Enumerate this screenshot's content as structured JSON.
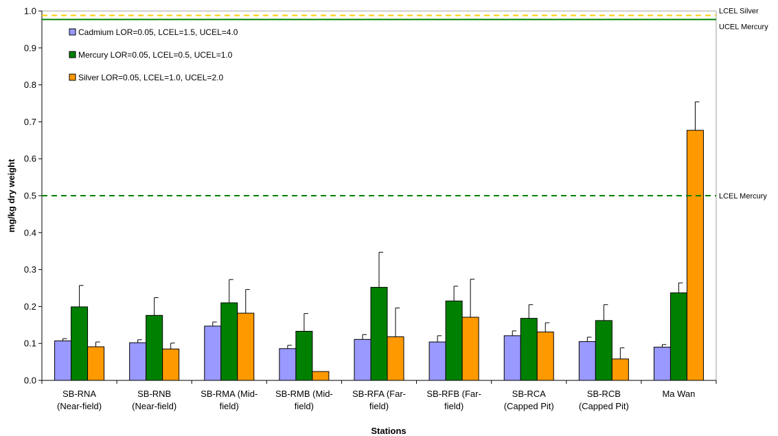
{
  "chart_data": {
    "type": "bar",
    "xlabel": "Stations",
    "ylabel": "mg/kg dry weight",
    "ylim": [
      0,
      1.0
    ],
    "ytick_labels": [
      "0.0",
      "0.1",
      "0.2",
      "0.3",
      "0.4",
      "0.5",
      "0.6",
      "0.7",
      "0.8",
      "0.9",
      "1.0"
    ],
    "grid": false,
    "legend_position": "top-left",
    "categories": [
      [
        "SB-RNA",
        "(Near-field)"
      ],
      [
        "SB-RNB",
        "(Near-field)"
      ],
      [
        "SB-RMA (Mid-",
        "field)"
      ],
      [
        "SB-RMB (Mid-",
        "field)"
      ],
      [
        "SB-RFA (Far-",
        "field)"
      ],
      [
        "SB-RFB (Far-",
        "field)"
      ],
      [
        "SB-RCA",
        "(Capped Pit)"
      ],
      [
        "SB-RCB",
        "(Capped Pit)"
      ],
      [
        "Ma Wan",
        ""
      ]
    ],
    "series": [
      {
        "name": "Cadmium LOR=0.05, LCEL=1.5, UCEL=4.0",
        "color": "#9999ff",
        "values": [
          0.107,
          0.102,
          0.147,
          0.086,
          0.111,
          0.104,
          0.121,
          0.105,
          0.09
        ],
        "errors": [
          0.006,
          0.008,
          0.011,
          0.009,
          0.013,
          0.017,
          0.013,
          0.012,
          0.007
        ]
      },
      {
        "name": "Mercury LOR=0.05, LCEL=0.5, UCEL=1.0",
        "color": "#008000",
        "values": [
          0.199,
          0.176,
          0.21,
          0.133,
          0.252,
          0.215,
          0.168,
          0.162,
          0.237
        ],
        "errors": [
          0.058,
          0.048,
          0.063,
          0.048,
          0.095,
          0.04,
          0.037,
          0.043,
          0.027
        ]
      },
      {
        "name": "Silver LOR=0.05, LCEL=1.0, UCEL=2.0",
        "color": "#ff9900",
        "values": [
          0.091,
          0.085,
          0.182,
          0.024,
          0.118,
          0.171,
          0.131,
          0.058,
          0.677
        ],
        "errors": [
          0.013,
          0.016,
          0.064,
          0.0,
          0.078,
          0.103,
          0.025,
          0.03,
          0.077
        ]
      }
    ],
    "reference_lines": [
      {
        "label": "LCEL Silver",
        "value": 0.988,
        "color": "#ffcc00",
        "style": "dashed"
      },
      {
        "label": "UCEL Mercury",
        "value": 0.977,
        "color": "#008000",
        "style": "solid"
      },
      {
        "label": "LCEL Mercury",
        "value": 0.5,
        "color": "#008000",
        "style": "dashed"
      }
    ]
  }
}
